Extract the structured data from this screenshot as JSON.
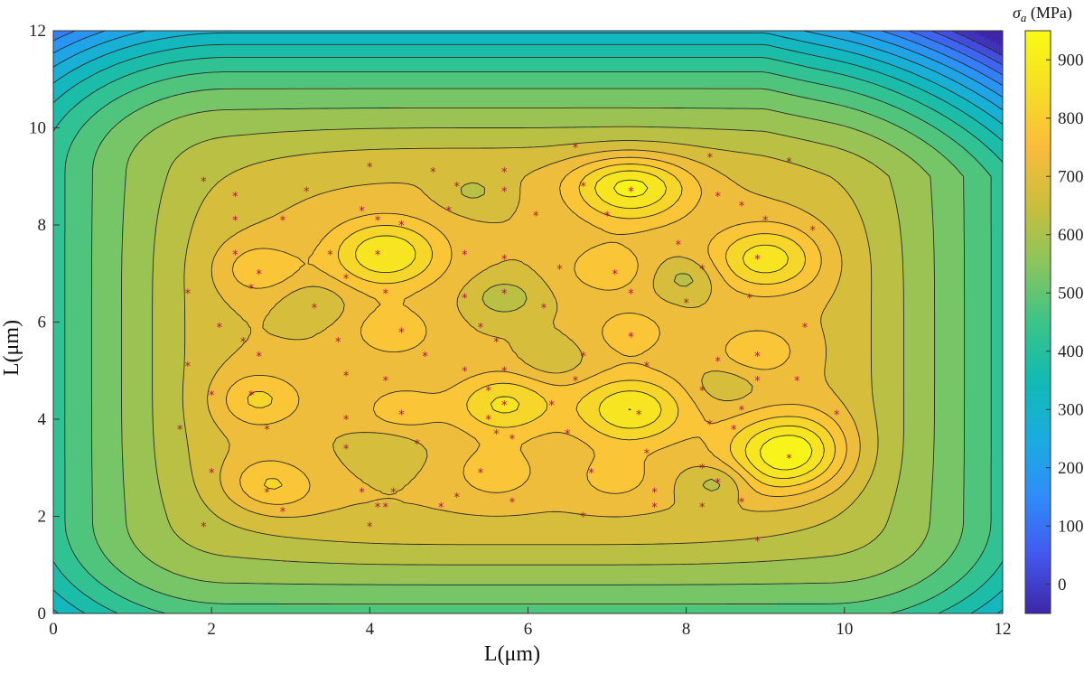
{
  "chart_data": {
    "type": "heatmap",
    "subtype": "filled-contour",
    "xlabel": "L(μm)",
    "ylabel": "L(μm)",
    "xlim": [
      0,
      12
    ],
    "ylim": [
      0,
      12
    ],
    "x_ticks": [
      "0",
      "2",
      "4",
      "6",
      "8",
      "10",
      "12"
    ],
    "y_ticks": [
      "0",
      "2",
      "4",
      "6",
      "8",
      "10",
      "12"
    ],
    "colorbar": {
      "title_symbol": "σ",
      "title_subscript": "a",
      "title_unit": " (MPa)",
      "range": [
        -50,
        950
      ],
      "ticks": [
        "0",
        "100",
        "200",
        "300",
        "400",
        "500",
        "600",
        "700",
        "800",
        "900"
      ],
      "colormap": [
        "#3e26a8",
        "#4358ef",
        "#2f8cf9",
        "#1aace0",
        "#11bab2",
        "#3bc488",
        "#8ac55c",
        "#c9be3c",
        "#fbbc3c",
        "#f5de24",
        "#f9fb15"
      ]
    },
    "field": {
      "background": 610,
      "edge_falloff": "decreasing toward borders, lowest at corners (~-50 MPa top-right corner)",
      "plateau_value": 700,
      "peaks": [
        {
          "x": 4.2,
          "y": 7.4,
          "value": 900
        },
        {
          "x": 7.3,
          "y": 8.8,
          "value": 920
        },
        {
          "x": 9.0,
          "y": 7.3,
          "value": 880
        },
        {
          "x": 9.3,
          "y": 3.3,
          "value": 950
        },
        {
          "x": 7.3,
          "y": 4.2,
          "value": 900
        },
        {
          "x": 5.7,
          "y": 4.3,
          "value": 860
        },
        {
          "x": 2.6,
          "y": 4.4,
          "value": 810
        },
        {
          "x": 2.7,
          "y": 2.6,
          "value": 820
        },
        {
          "x": 2.6,
          "y": 7.1,
          "value": 790
        },
        {
          "x": 4.3,
          "y": 5.8,
          "value": 790
        },
        {
          "x": 7.0,
          "y": 7.1,
          "value": 790
        },
        {
          "x": 5.6,
          "y": 2.9,
          "value": 790
        },
        {
          "x": 8.9,
          "y": 5.4,
          "value": 790
        },
        {
          "x": 4.4,
          "y": 4.2,
          "value": 780
        },
        {
          "x": 7.3,
          "y": 5.8,
          "value": 780
        },
        {
          "x": 7.1,
          "y": 2.8,
          "value": 775
        }
      ],
      "valleys": [
        {
          "x": 5.7,
          "y": 6.5,
          "value": 615
        },
        {
          "x": 5.3,
          "y": 8.7,
          "value": 640
        },
        {
          "x": 3.3,
          "y": 6.4,
          "value": 645
        },
        {
          "x": 8.0,
          "y": 6.9,
          "value": 625
        },
        {
          "x": 8.4,
          "y": 2.7,
          "value": 610
        },
        {
          "x": 6.3,
          "y": 5.2,
          "value": 650
        },
        {
          "x": 8.5,
          "y": 4.7,
          "value": 650
        },
        {
          "x": 4.2,
          "y": 3.4,
          "value": 650
        }
      ]
    },
    "sample_points": [
      [
        1.9,
        8.9
      ],
      [
        2.3,
        8.6
      ],
      [
        2.3,
        8.1
      ],
      [
        2.3,
        7.4
      ],
      [
        2.6,
        7.0
      ],
      [
        2.5,
        6.7
      ],
      [
        1.7,
        6.6
      ],
      [
        2.1,
        5.9
      ],
      [
        2.4,
        5.6
      ],
      [
        2.6,
        5.3
      ],
      [
        1.7,
        5.1
      ],
      [
        2.0,
        4.5
      ],
      [
        2.5,
        4.5
      ],
      [
        2.7,
        3.8
      ],
      [
        1.6,
        3.8
      ],
      [
        2.0,
        2.9
      ],
      [
        2.7,
        2.5
      ],
      [
        2.9,
        2.1
      ],
      [
        1.9,
        1.8
      ],
      [
        2.9,
        8.1
      ],
      [
        3.2,
        8.7
      ],
      [
        3.5,
        7.4
      ],
      [
        3.3,
        6.3
      ],
      [
        3.6,
        5.6
      ],
      [
        3.7,
        4.9
      ],
      [
        3.7,
        4.0
      ],
      [
        3.7,
        3.4
      ],
      [
        3.9,
        2.5
      ],
      [
        4.0,
        1.8
      ],
      [
        4.1,
        2.2
      ],
      [
        3.7,
        6.9
      ],
      [
        3.9,
        8.3
      ],
      [
        4.0,
        9.2
      ],
      [
        4.1,
        8.1
      ],
      [
        4.4,
        8.0
      ],
      [
        4.1,
        7.4
      ],
      [
        4.2,
        6.6
      ],
      [
        4.4,
        5.8
      ],
      [
        4.7,
        5.3
      ],
      [
        4.2,
        4.8
      ],
      [
        4.4,
        4.1
      ],
      [
        4.6,
        3.5
      ],
      [
        4.3,
        2.5
      ],
      [
        4.2,
        2.2
      ],
      [
        4.8,
        9.1
      ],
      [
        5.1,
        8.8
      ],
      [
        5.0,
        8.3
      ],
      [
        5.2,
        7.4
      ],
      [
        5.2,
        6.5
      ],
      [
        5.4,
        5.9
      ],
      [
        5.2,
        5.0
      ],
      [
        5.5,
        4.6
      ],
      [
        5.5,
        4.0
      ],
      [
        5.6,
        3.7
      ],
      [
        5.4,
        2.9
      ],
      [
        5.1,
        2.4
      ],
      [
        4.9,
        2.2
      ],
      [
        5.7,
        9.1
      ],
      [
        5.7,
        8.7
      ],
      [
        5.7,
        7.3
      ],
      [
        5.7,
        6.6
      ],
      [
        5.6,
        5.6
      ],
      [
        5.7,
        5.0
      ],
      [
        5.7,
        4.3
      ],
      [
        5.8,
        3.6
      ],
      [
        5.8,
        2.3
      ],
      [
        6.6,
        9.6
      ],
      [
        6.7,
        8.8
      ],
      [
        6.1,
        8.2
      ],
      [
        6.4,
        7.1
      ],
      [
        6.2,
        6.3
      ],
      [
        6.7,
        5.3
      ],
      [
        6.6,
        4.8
      ],
      [
        6.3,
        4.3
      ],
      [
        6.5,
        3.7
      ],
      [
        6.8,
        2.9
      ],
      [
        6.7,
        2.0
      ],
      [
        7.0,
        8.2
      ],
      [
        7.3,
        8.7
      ],
      [
        7.1,
        7.0
      ],
      [
        7.3,
        6.6
      ],
      [
        7.3,
        5.7
      ],
      [
        7.5,
        5.1
      ],
      [
        7.4,
        4.1
      ],
      [
        7.5,
        3.3
      ],
      [
        7.6,
        2.5
      ],
      [
        7.6,
        2.2
      ],
      [
        8.3,
        9.4
      ],
      [
        8.4,
        8.6
      ],
      [
        8.7,
        8.4
      ],
      [
        7.9,
        7.6
      ],
      [
        8.2,
        7.1
      ],
      [
        8.0,
        6.4
      ],
      [
        8.4,
        5.2
      ],
      [
        8.2,
        4.6
      ],
      [
        8.3,
        3.9
      ],
      [
        8.2,
        3.0
      ],
      [
        8.4,
        2.7
      ],
      [
        8.2,
        2.2
      ],
      [
        8.7,
        2.3
      ],
      [
        9.0,
        8.1
      ],
      [
        8.9,
        7.3
      ],
      [
        8.8,
        6.5
      ],
      [
        8.9,
        5.3
      ],
      [
        8.9,
        4.8
      ],
      [
        8.7,
        4.2
      ],
      [
        9.4,
        4.8
      ],
      [
        9.3,
        3.2
      ],
      [
        9.5,
        5.9
      ],
      [
        9.6,
        7.9
      ],
      [
        9.3,
        9.3
      ],
      [
        9.9,
        4.1
      ],
      [
        8.9,
        1.5
      ],
      [
        8.6,
        3.8
      ]
    ]
  }
}
